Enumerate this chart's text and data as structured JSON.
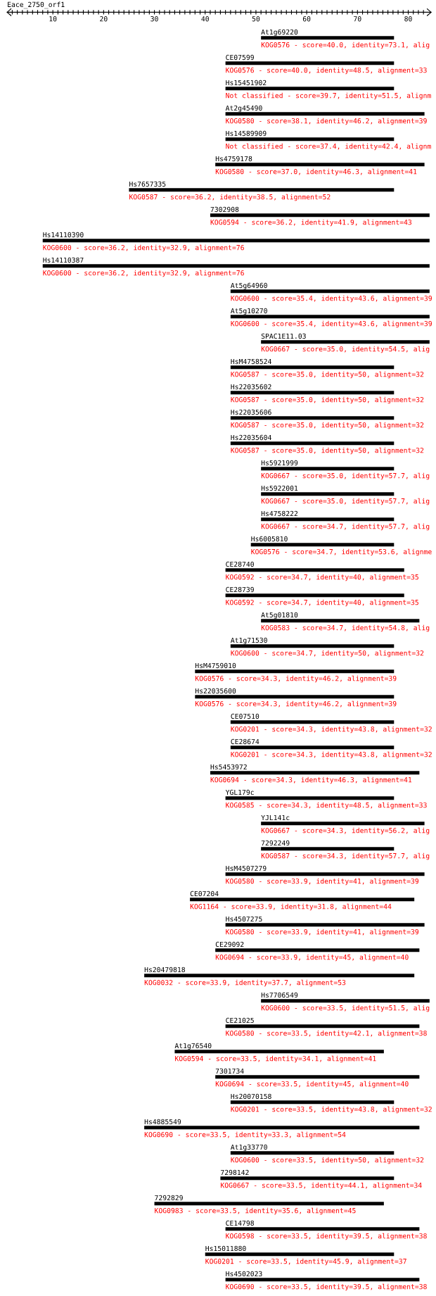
{
  "chart_data": {
    "type": "bar",
    "orientation": "horizontal",
    "title": "Eace_2750_orf1",
    "color": "#000000",
    "categories": [
      "At1g69220",
      "CE07599",
      "Hs15451902",
      "At2g45490",
      "Hs14589909",
      "Hs4759178",
      "Hs7657335",
      "7302908",
      "Hs14110390",
      "Hs14110387",
      "At5g64960",
      "At5g10270",
      "SPAC1E11.03",
      "HsM4758524",
      "Hs22035602",
      "Hs22035606",
      "Hs22035604",
      "Hs5921999",
      "Hs5922001",
      "Hs4758222",
      "Hs6005810",
      "CE28740",
      "CE28739",
      "At5g01810",
      "At1g71530",
      "HsM4759010",
      "Hs22035600",
      "CE07510",
      "CE28674",
      "Hs5453972",
      "YGL179c",
      "YJL141c",
      "7292249",
      "HsM4507279",
      "CE07204",
      "Hs4507275",
      "CE29092",
      "Hs20479818",
      "Hs7706549",
      "CE21025",
      "At1g76540",
      "7301734",
      "Hs20070158",
      "Hs4885549",
      "At1g33770",
      "7298142",
      "7292829",
      "CE14798",
      "Hs15011880",
      "Hs4502023"
    ],
    "base": [
      51,
      44,
      44,
      44,
      44,
      42,
      25,
      41,
      8,
      8,
      45,
      45,
      51,
      45,
      45,
      45,
      45,
      51,
      51,
      51,
      49,
      44,
      44,
      51,
      45,
      38,
      38,
      45,
      45,
      41,
      44,
      51,
      51,
      44,
      37,
      44,
      42,
      28,
      51,
      44,
      34,
      42,
      45,
      28,
      45,
      43,
      30,
      44,
      40,
      44
    ],
    "values": [
      26.2,
      33.2,
      33.2,
      39.2,
      33.2,
      41.2,
      52.2,
      43.2,
      76.2,
      76.2,
      39.2,
      39.2,
      33.2,
      32.2,
      32.2,
      32.2,
      32.2,
      26.2,
      26.2,
      26.2,
      28.2,
      35.2,
      35.2,
      31.2,
      32.2,
      39.2,
      39.2,
      32.2,
      32.2,
      41.2,
      33.2,
      32.2,
      26.2,
      39.2,
      44.2,
      39.2,
      40.2,
      53.2,
      33.2,
      38.2,
      41.2,
      40.2,
      32.2,
      54.2,
      32.2,
      34.2,
      45.2,
      38.2,
      37.2,
      38.2
    ],
    "value_labels": [
      "KOG0576 - score=40.0, identity=73.1, alig",
      "KOG0576 - score=40.0, identity=48.5, alignment=33",
      "Not classified - score=39.7, identity=51.5, alignm",
      "KOG0580 - score=38.1, identity=46.2, alignment=39",
      "Not classified - score=37.4, identity=42.4, alignm",
      "KOG0580 - score=37.0, identity=46.3, alignment=41",
      "KOG0587 - score=36.2, identity=38.5, alignment=52",
      "KOG0594 - score=36.2, identity=41.9, alignment=43",
      "KOG0600 - score=36.2, identity=32.9, alignment=76",
      "KOG0600 - score=36.2, identity=32.9, alignment=76",
      "KOG0600 - score=35.4, identity=43.6, alignment=39",
      "KOG0600 - score=35.4, identity=43.6, alignment=39",
      "KOG0667 - score=35.0, identity=54.5, alig",
      "KOG0587 - score=35.0, identity=50, alignment=32",
      "KOG0587 - score=35.0, identity=50, alignment=32",
      "KOG0587 - score=35.0, identity=50, alignment=32",
      "KOG0587 - score=35.0, identity=50, alignment=32",
      "KOG0667 - score=35.0, identity=57.7, alig",
      "KOG0667 - score=35.0, identity=57.7, alig",
      "KOG0667 - score=34.7, identity=57.7, alig",
      "KOG0576 - score=34.7, identity=53.6, alignme",
      "KOG0592 - score=34.7, identity=40, alignment=35",
      "KOG0592 - score=34.7, identity=40, alignment=35",
      "KOG0583 - score=34.7, identity=54.8, alig",
      "KOG0600 - score=34.7, identity=50, alignment=32",
      "KOG0576 - score=34.3, identity=46.2, alignment=39",
      "KOG0576 - score=34.3, identity=46.2, alignment=39",
      "KOG0201 - score=34.3, identity=43.8, alignment=32",
      "KOG0201 - score=34.3, identity=43.8, alignment=32",
      "KOG0694 - score=34.3, identity=46.3, alignment=41",
      "KOG0585 - score=34.3, identity=48.5, alignment=33",
      "KOG0667 - score=34.3, identity=56.2, alig",
      "KOG0587 - score=34.3, identity=57.7, alig",
      "KOG0580 - score=33.9, identity=41, alignment=39",
      "KOG1164 - score=33.9, identity=31.8, alignment=44",
      "KOG0580 - score=33.9, identity=41, alignment=39",
      "KOG0694 - score=33.9, identity=45, alignment=40",
      "KOG0032 - score=33.9, identity=37.7, alignment=53",
      "KOG0600 - score=33.5, identity=51.5, alig",
      "KOG0580 - score=33.5, identity=42.1, alignment=38",
      "KOG0594 - score=33.5, identity=34.1, alignment=41",
      "KOG0694 - score=33.5, identity=45, alignment=40",
      "KOG0201 - score=33.5, identity=43.8, alignment=32",
      "KOG0690 - score=33.5, identity=33.3, alignment=54",
      "KOG0600 - score=33.5, identity=50, alignment=32",
      "KOG0667 - score=33.5, identity=44.1, alignment=34",
      "KOG0983 - score=33.5, identity=35.6, alignment=45",
      "KOG0598 - score=33.5, identity=39.5, alignment=38",
      "KOG0201 - score=33.5, identity=45.9, alignment=37",
      "KOG0690 - score=33.5, identity=39.5, alignment=38"
    ],
    "xlim": [
      1,
      84.5
    ],
    "xticks": [
      {
        "value": 2,
        "label": null
      },
      {
        "value": 3,
        "label": null
      },
      {
        "value": 4,
        "label": null
      },
      {
        "value": 5,
        "label": null
      },
      {
        "value": 6,
        "label": null
      },
      {
        "value": 7,
        "label": null
      },
      {
        "value": 8,
        "label": null
      },
      {
        "value": 9,
        "label": null
      },
      10,
      {
        "value": 11,
        "label": null
      },
      {
        "value": 12,
        "label": null
      },
      {
        "value": 13,
        "label": null
      },
      {
        "value": 14,
        "label": null
      },
      {
        "value": 15,
        "label": null
      },
      {
        "value": 16,
        "label": null
      },
      {
        "value": 17,
        "label": null
      },
      {
        "value": 18,
        "label": null
      },
      {
        "value": 19,
        "label": null
      },
      20,
      {
        "value": 21,
        "label": null
      },
      {
        "value": 22,
        "label": null
      },
      {
        "value": 23,
        "label": null
      },
      {
        "value": 24,
        "label": null
      },
      {
        "value": 25,
        "label": null
      },
      {
        "value": 26,
        "label": null
      },
      {
        "value": 27,
        "label": null
      },
      {
        "value": 28,
        "label": null
      },
      {
        "value": 29,
        "label": null
      },
      30,
      {
        "value": 31,
        "label": null
      },
      {
        "value": 32,
        "label": null
      },
      {
        "value": 33,
        "label": null
      },
      {
        "value": 34,
        "label": null
      },
      {
        "value": 35,
        "label": null
      },
      {
        "value": 36,
        "label": null
      },
      {
        "value": 37,
        "label": null
      },
      {
        "value": 38,
        "label": null
      },
      {
        "value": 39,
        "label": null
      },
      40,
      {
        "value": 41,
        "label": null
      },
      {
        "value": 42,
        "label": null
      },
      {
        "value": 43,
        "label": null
      },
      {
        "value": 44,
        "label": null
      },
      {
        "value": 45,
        "label": null
      },
      {
        "value": 46,
        "label": null
      },
      {
        "value": 47,
        "label": null
      },
      {
        "value": 48,
        "label": null
      },
      {
        "value": 49,
        "label": null
      },
      50,
      {
        "value": 51,
        "label": null
      },
      {
        "value": 52,
        "label": null
      },
      {
        "value": 53,
        "label": null
      },
      {
        "value": 54,
        "label": null
      },
      {
        "value": 55,
        "label": null
      },
      {
        "value": 56,
        "label": null
      },
      {
        "value": 57,
        "label": null
      },
      {
        "value": 58,
        "label": null
      },
      {
        "value": 59,
        "label": null
      },
      60,
      {
        "value": 61,
        "label": null
      },
      {
        "value": 62,
        "label": null
      },
      {
        "value": 63,
        "label": null
      },
      {
        "value": 64,
        "label": null
      },
      {
        "value": 65,
        "label": null
      },
      {
        "value": 66,
        "label": null
      },
      {
        "value": 67,
        "label": null
      },
      {
        "value": 68,
        "label": null
      },
      {
        "value": 69,
        "label": null
      },
      70,
      {
        "value": 71,
        "label": null
      },
      {
        "value": 72,
        "label": null
      },
      {
        "value": 73,
        "label": null
      },
      {
        "value": 74,
        "label": null
      },
      {
        "value": 75,
        "label": null
      },
      {
        "value": 76,
        "label": null
      },
      {
        "value": 77,
        "label": null
      },
      {
        "value": 78,
        "label": null
      },
      {
        "value": 79,
        "label": null
      },
      80,
      {
        "value": 81,
        "label": null
      },
      {
        "value": 82,
        "label": null
      },
      {
        "value": 83,
        "label": null
      }
    ]
  }
}
